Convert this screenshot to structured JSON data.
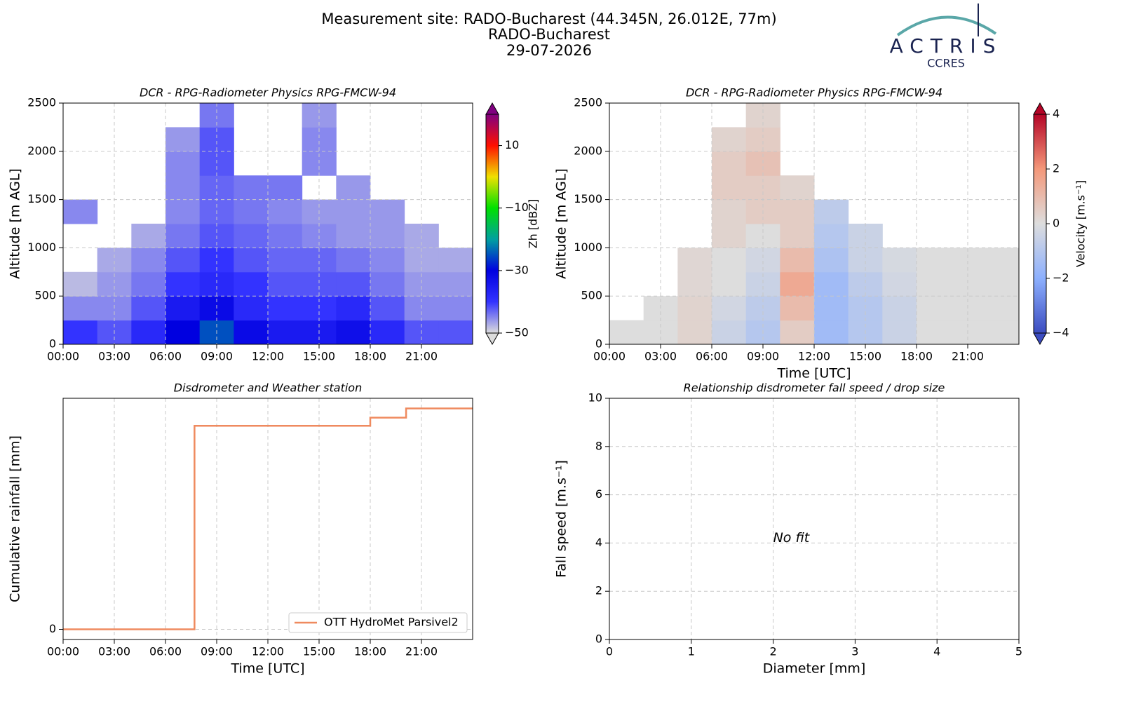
{
  "header": {
    "title": [
      "Measurement site: RADO-Bucharest (44.345N, 26.012E, 77m)",
      "RADO-Bucharest",
      "29-07-2026"
    ],
    "logo": {
      "name": "ACTRIS",
      "sub": "CCRES"
    }
  },
  "chart_data": [
    {
      "type": "heatmap",
      "title": "DCR - RPG-Radiometer Physics RPG-FMCW-94",
      "ylabel": "Altitude [m AGL]",
      "xlim": [
        0,
        24
      ],
      "xticks": [
        {
          "value": 0,
          "label": "00:00"
        },
        {
          "value": 3,
          "label": "03:00"
        },
        {
          "value": 6,
          "label": "06:00"
        },
        {
          "value": 9,
          "label": "09:00"
        },
        {
          "value": 12,
          "label": "12:00"
        },
        {
          "value": 15,
          "label": "15:00"
        },
        {
          "value": 18,
          "label": "18:00"
        },
        {
          "value": 21,
          "label": "21:00"
        }
      ],
      "ylim": [
        0,
        2500
      ],
      "yticks": [
        0,
        500,
        1000,
        1500,
        2000,
        2500
      ],
      "grid": true,
      "xbins": [
        0,
        2,
        4,
        6,
        8,
        10,
        12,
        14,
        16,
        18,
        20,
        22,
        24
      ],
      "ybins": [
        0,
        250,
        500,
        750,
        1000,
        1250,
        1500,
        1750,
        2000,
        2250,
        2500
      ],
      "z": [
        [
          -40,
          -42,
          -38,
          -30,
          -25,
          -32,
          -35,
          -35,
          -33,
          -38,
          -42,
          -42
        ],
        [
          -45,
          -45,
          -42,
          -35,
          -32,
          -38,
          -40,
          -40,
          -38,
          -42,
          -45,
          -45
        ],
        [
          -48,
          -46,
          -44,
          -40,
          -38,
          -40,
          -42,
          -42,
          -42,
          -44,
          -46,
          -46
        ],
        [
          null,
          -47,
          -45,
          -42,
          -40,
          -42,
          -43,
          -43,
          -44,
          -45,
          -47,
          -47
        ],
        [
          null,
          null,
          -47,
          -44,
          -42,
          -43,
          -44,
          -45,
          -46,
          -46,
          -47,
          null
        ],
        [
          -45,
          null,
          null,
          -45,
          -43,
          -44,
          -45,
          -46,
          -46,
          -46,
          null,
          null
        ],
        [
          null,
          null,
          null,
          -45,
          -43,
          -44,
          -44,
          null,
          -46,
          null,
          null,
          null
        ],
        [
          null,
          null,
          null,
          -45,
          -42,
          null,
          null,
          -45,
          null,
          null,
          null,
          null
        ],
        [
          null,
          null,
          null,
          -46,
          -42,
          null,
          null,
          -45,
          null,
          null,
          null,
          null
        ],
        [
          null,
          null,
          null,
          null,
          -44,
          null,
          null,
          -46,
          null,
          null,
          null,
          null
        ]
      ],
      "zlim": [
        -50,
        20
      ],
      "zticks": [
        {
          "value": -50,
          "label": "−50"
        },
        {
          "value": -30,
          "label": "−30"
        },
        {
          "value": -10,
          "label": "−10"
        },
        10
      ],
      "zlabel": "Zh [dBZ]",
      "colors": [
        "#dcdcdc",
        "#3333ff",
        "#0000e0",
        "#00a0a0",
        "#00e000",
        "#f0e000",
        "#ff1000",
        "#800080"
      ]
    },
    {
      "type": "heatmap",
      "title": "DCR - RPG-Radiometer Physics RPG-FMCW-94",
      "ylabel": "Altitude [m AGL]",
      "xlabel": "Time [UTC]",
      "xlim": [
        0,
        24
      ],
      "xticks": [
        {
          "value": 0,
          "label": "00:00"
        },
        {
          "value": 3,
          "label": "03:00"
        },
        {
          "value": 6,
          "label": "06:00"
        },
        {
          "value": 9,
          "label": "09:00"
        },
        {
          "value": 12,
          "label": "12:00"
        },
        {
          "value": 15,
          "label": "15:00"
        },
        {
          "value": 18,
          "label": "18:00"
        },
        {
          "value": 21,
          "label": "21:00"
        }
      ],
      "ylim": [
        0,
        2500
      ],
      "yticks": [
        0,
        500,
        1000,
        1500,
        2000,
        2500
      ],
      "grid": true,
      "xbins": [
        0,
        2,
        4,
        6,
        8,
        10,
        12,
        14,
        16,
        18,
        20,
        22,
        24
      ],
      "ybins": [
        0,
        250,
        500,
        750,
        1000,
        1250,
        1500,
        1750,
        2000,
        2250,
        2500
      ],
      "z": [
        [
          0,
          0,
          0.3,
          -0.5,
          -1,
          0.5,
          -1.5,
          -1,
          -0.5,
          0,
          0,
          0
        ],
        [
          null,
          0,
          0.3,
          -0.3,
          -0.8,
          1,
          -1.5,
          -1,
          -0.5,
          0,
          0,
          0
        ],
        [
          null,
          null,
          0.2,
          0,
          -0.5,
          1.5,
          -1.5,
          -0.8,
          -0.3,
          0,
          0,
          0
        ],
        [
          null,
          null,
          0.2,
          0,
          -0.3,
          1,
          -1.2,
          -0.5,
          -0.2,
          0,
          0,
          0
        ],
        [
          null,
          null,
          null,
          0.3,
          0,
          0.5,
          -1,
          -0.5,
          null,
          null,
          null,
          null
        ],
        [
          null,
          null,
          null,
          0.3,
          0.5,
          0.5,
          -0.8,
          null,
          null,
          null,
          null,
          null
        ],
        [
          null,
          null,
          null,
          0.5,
          0.5,
          0.3,
          null,
          null,
          null,
          null,
          null,
          null
        ],
        [
          null,
          null,
          null,
          0.5,
          0.8,
          null,
          null,
          null,
          null,
          null,
          null,
          null
        ],
        [
          null,
          null,
          null,
          0.3,
          0.5,
          null,
          null,
          null,
          null,
          null,
          null,
          null
        ],
        [
          null,
          null,
          null,
          null,
          0.3,
          null,
          null,
          null,
          null,
          null,
          null,
          null
        ]
      ],
      "zlim": [
        -4,
        4
      ],
      "zticks": [
        {
          "value": -4,
          "label": "−4"
        },
        {
          "value": -2,
          "label": "−2"
        },
        0,
        2,
        4
      ],
      "zlabel": "Velocity [m.s⁻¹]",
      "colors": [
        "#3b4cc0",
        "#8db0fe",
        "#dddddd",
        "#f4987a",
        "#b40426"
      ]
    },
    {
      "type": "line",
      "title": "Disdrometer and Weather station",
      "ylabel": "Cumulative rainfall [mm]",
      "xlabel": "Time [UTC]",
      "xlim": [
        0,
        24
      ],
      "xticks": [
        {
          "value": 0,
          "label": "00:00"
        },
        {
          "value": 3,
          "label": "03:00"
        },
        {
          "value": 6,
          "label": "06:00"
        },
        {
          "value": 9,
          "label": "09:00"
        },
        {
          "value": 12,
          "label": "12:00"
        },
        {
          "value": 15,
          "label": "15:00"
        },
        {
          "value": 18,
          "label": "18:00"
        },
        {
          "value": 21,
          "label": "21:00"
        }
      ],
      "ylim": [
        -0.1,
        2.27
      ],
      "yticks": [
        0
      ],
      "grid": true,
      "step": "post",
      "legend": "lower right",
      "series": [
        {
          "name": "OTT HydroMet Parsivel2",
          "color": "#ef8a5f",
          "x": [
            0,
            7.7,
            18.0,
            20.1,
            24
          ],
          "values": [
            0,
            2.0,
            2.08,
            2.17,
            2.17
          ]
        }
      ]
    },
    {
      "type": "scatter",
      "title": "Relationship disdrometer fall speed / drop size",
      "ylabel": "Fall speed [m.s⁻¹]",
      "xlabel": "Diameter [mm]",
      "xlim": [
        0,
        5
      ],
      "xticks": [
        0,
        1,
        2,
        3,
        4,
        5
      ],
      "ylim": [
        0,
        10
      ],
      "yticks": [
        0,
        2,
        4,
        6,
        8,
        10
      ],
      "grid": true,
      "annotation": {
        "text": "No fit",
        "x": 2.0,
        "y": 4.2
      }
    }
  ]
}
